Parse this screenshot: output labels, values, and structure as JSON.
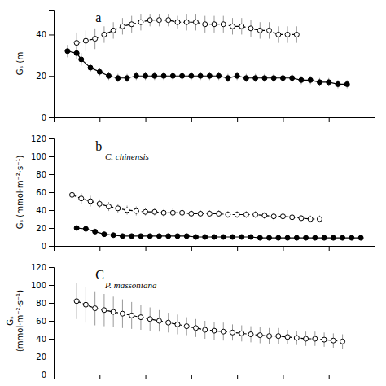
{
  "chart_data": [
    {
      "type": "line",
      "ylabel": "Gₛ (m",
      "annotations": [
        "a"
      ],
      "xlim": [
        1,
        8
      ],
      "xticks": [
        1,
        2,
        3,
        4,
        5,
        6,
        7,
        8
      ],
      "ylim": [
        0,
        52
      ],
      "yticks": [
        0,
        20,
        40
      ],
      "tick_labels": "y",
      "series": [
        {
          "color": "black",
          "marker": "open",
          "line_style": "dashed",
          "x": [
            1.5,
            1.7,
            1.9,
            2.1,
            2.3,
            2.5,
            2.7,
            2.9,
            3.1,
            3.3,
            3.5,
            3.7,
            3.9,
            4.1,
            4.3,
            4.5,
            4.7,
            4.9,
            5.1,
            5.3,
            5.5,
            5.7,
            5.9,
            6.1,
            6.3
          ],
          "values": [
            36,
            37,
            38,
            40,
            42,
            44,
            45,
            46,
            47,
            47,
            47,
            46,
            46,
            46,
            45,
            45,
            45,
            44,
            44,
            43,
            42,
            42,
            40,
            40,
            40
          ],
          "yerr": [
            5,
            5,
            5,
            4,
            4,
            4,
            4,
            4,
            3,
            3,
            3,
            3,
            4,
            4,
            4,
            4,
            4,
            4,
            4,
            4,
            4,
            4,
            4,
            4,
            4
          ]
        },
        {
          "color": "black",
          "marker": "filled",
          "line_style": "solid",
          "x": [
            1.3,
            1.5,
            1.6,
            1.8,
            2.0,
            2.2,
            2.4,
            2.6,
            2.8,
            3.0,
            3.2,
            3.4,
            3.6,
            3.8,
            4.0,
            4.2,
            4.4,
            4.6,
            4.8,
            5.0,
            5.2,
            5.4,
            5.6,
            5.8,
            6.0,
            6.2,
            6.4,
            6.6,
            6.8,
            7.0,
            7.2,
            7.4
          ],
          "values": [
            32,
            31,
            28,
            24,
            22,
            20,
            19,
            19,
            20,
            20,
            20,
            20,
            20,
            20,
            20,
            20,
            20,
            20,
            19,
            20,
            19,
            19,
            19,
            19,
            19,
            19,
            18,
            18,
            17,
            17,
            16,
            16
          ],
          "yerr": [
            3,
            3,
            3,
            2,
            2,
            2,
            2,
            2,
            2,
            2,
            2,
            2,
            2,
            2,
            2,
            2,
            2,
            2,
            2,
            2,
            2,
            2,
            2,
            2,
            2,
            2,
            2,
            2,
            2,
            2,
            2,
            2
          ]
        }
      ]
    },
    {
      "type": "line",
      "ylabel": "Gₛ (mmol·m⁻²·s⁻¹)",
      "annotations": [
        "b",
        "C. chinensis"
      ],
      "xlim": [
        1,
        8
      ],
      "xticks": [
        1,
        2,
        3,
        4,
        5,
        6,
        7,
        8
      ],
      "ylim": [
        0,
        120
      ],
      "yticks": [
        0,
        20,
        40,
        60,
        80,
        100,
        120
      ],
      "tick_labels": "y",
      "series": [
        {
          "color": "black",
          "marker": "open",
          "line_style": "dashed",
          "x": [
            1.4,
            1.6,
            1.8,
            2.0,
            2.2,
            2.4,
            2.6,
            2.8,
            3.0,
            3.2,
            3.4,
            3.6,
            3.8,
            4.0,
            4.2,
            4.4,
            4.6,
            4.8,
            5.0,
            5.2,
            5.4,
            5.6,
            5.8,
            6.0,
            6.2,
            6.4,
            6.6,
            6.8
          ],
          "values": [
            57,
            53,
            50,
            47,
            44,
            42,
            40,
            39,
            38,
            38,
            37,
            37,
            37,
            36,
            36,
            36,
            36,
            35,
            35,
            35,
            35,
            34,
            33,
            33,
            32,
            31,
            30,
            30
          ],
          "yerr": [
            7,
            6,
            6,
            5,
            5,
            5,
            5,
            5,
            4,
            4,
            4,
            5,
            4,
            4,
            4,
            4,
            4,
            4,
            4,
            4,
            4,
            4,
            4,
            4,
            3,
            3,
            4,
            4
          ]
        },
        {
          "color": "black",
          "marker": "filled",
          "line_style": "solid",
          "x": [
            1.5,
            1.7,
            1.9,
            2.1,
            2.3,
            2.5,
            2.7,
            2.9,
            3.1,
            3.3,
            3.5,
            3.7,
            3.9,
            4.1,
            4.3,
            4.5,
            4.7,
            4.9,
            5.1,
            5.3,
            5.5,
            5.7,
            5.9,
            6.1,
            6.3,
            6.5,
            6.7,
            6.9,
            7.1,
            7.3,
            7.5,
            7.7
          ],
          "values": [
            20,
            19,
            16,
            13,
            12,
            11,
            11,
            11,
            11,
            11,
            11,
            11,
            11,
            10,
            10,
            10,
            10,
            10,
            10,
            10,
            9,
            9,
            9,
            9,
            9,
            9,
            9,
            9,
            9,
            9,
            9,
            9
          ],
          "yerr": [
            2,
            2,
            2,
            2,
            2,
            1,
            1,
            1,
            1,
            1,
            1,
            1,
            1,
            1,
            1,
            1,
            1,
            1,
            1,
            1,
            1,
            1,
            1,
            1,
            1,
            1,
            1,
            1,
            1,
            1,
            1,
            1
          ]
        }
      ]
    },
    {
      "type": "line",
      "ylabel": "Gₛ\n(mmol·m⁻²·s⁻¹)",
      "annotations": [
        "C",
        "P. massoniana"
      ],
      "xlim": [
        1,
        8
      ],
      "xticks": [
        1,
        2,
        3,
        4,
        5,
        6,
        7,
        8
      ],
      "ylim": [
        0,
        120
      ],
      "yticks": [
        0,
        20,
        40,
        60,
        80,
        100,
        120
      ],
      "tick_labels": "y",
      "series": [
        {
          "color": "black",
          "marker": "open",
          "line_style": "dashed",
          "x": [
            1.5,
            1.7,
            1.9,
            2.1,
            2.3,
            2.5,
            2.7,
            2.9,
            3.1,
            3.3,
            3.5,
            3.7,
            3.9,
            4.1,
            4.3,
            4.5,
            4.7,
            4.9,
            5.1,
            5.3,
            5.5,
            5.7,
            5.9,
            6.1,
            6.3,
            6.5,
            6.7,
            6.9,
            7.1,
            7.3
          ],
          "values": [
            82,
            78,
            74,
            72,
            70,
            68,
            66,
            64,
            62,
            60,
            58,
            56,
            54,
            52,
            50,
            49,
            48,
            47,
            46,
            45,
            44,
            43,
            43,
            42,
            41,
            40,
            40,
            39,
            38,
            37
          ],
          "yerr": [
            20,
            20,
            19,
            18,
            17,
            16,
            15,
            14,
            13,
            12,
            11,
            11,
            10,
            10,
            10,
            10,
            10,
            9,
            9,
            9,
            9,
            9,
            9,
            8,
            8,
            8,
            8,
            8,
            8,
            8
          ]
        }
      ]
    }
  ]
}
